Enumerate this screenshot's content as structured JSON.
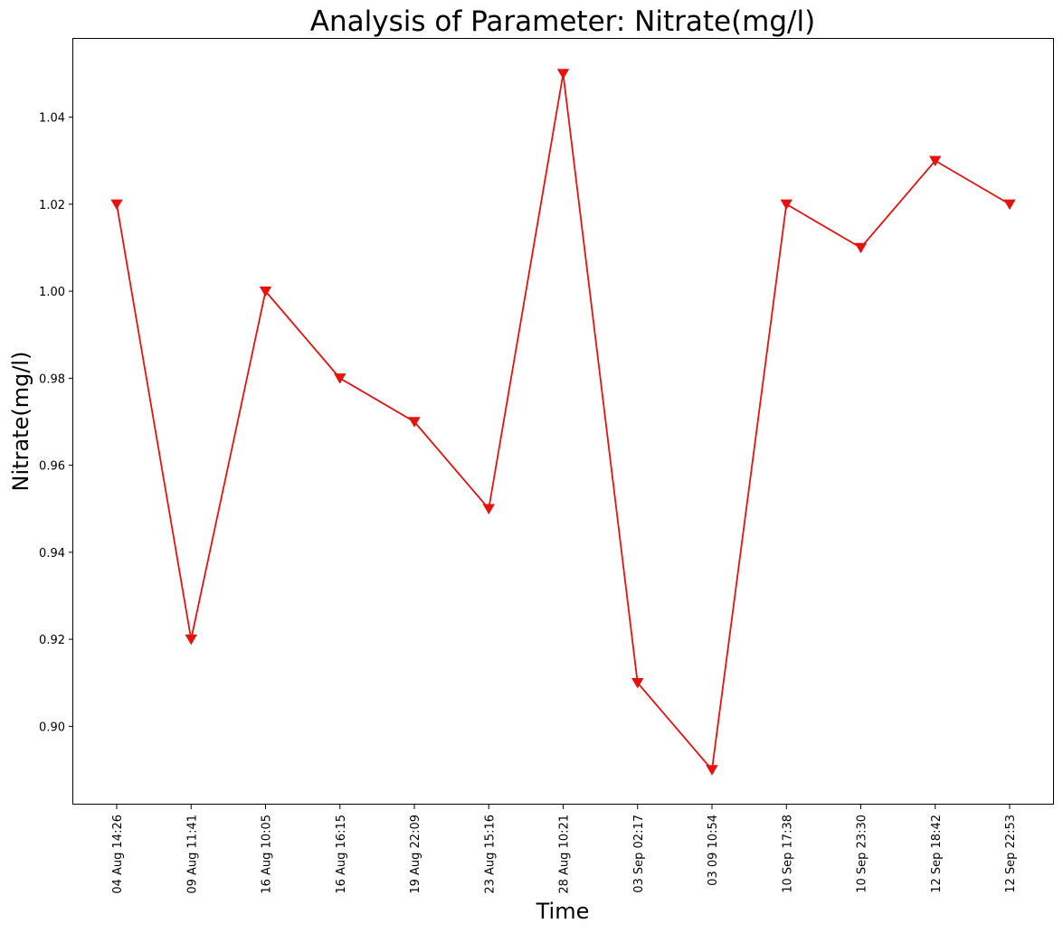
{
  "chart_data": {
    "type": "line",
    "title": "Analysis of Parameter: Nitrate(mg/l)",
    "xlabel": "Time",
    "ylabel": "Nitrate(mg/l)",
    "categories": [
      "04 Aug 14:26",
      "09 Aug 11:41",
      "16 Aug 10:05",
      "16 Aug 16:15",
      "19 Aug 22:09",
      "23 Aug 15:16",
      "28 Aug 10:21",
      "03 Sep 02:17",
      "03 09 10:54",
      "10 Sep 17:38",
      "10 Sep 23:30",
      "12 Sep 18:42",
      "12 Sep 22:53"
    ],
    "series": [
      {
        "values": [
          1.02,
          0.92,
          1.0,
          0.98,
          0.97,
          0.95,
          1.05,
          0.91,
          0.89,
          1.02,
          1.01,
          1.03,
          1.02
        ],
        "color": "#e6120f",
        "marker": "triangle-down"
      }
    ],
    "ylim": [
      0.882,
      1.058
    ],
    "yticks": [
      "0.90",
      "0.92",
      "0.94",
      "0.96",
      "0.98",
      "1.00",
      "1.02",
      "1.04"
    ],
    "grid": false,
    "legend": "none"
  }
}
